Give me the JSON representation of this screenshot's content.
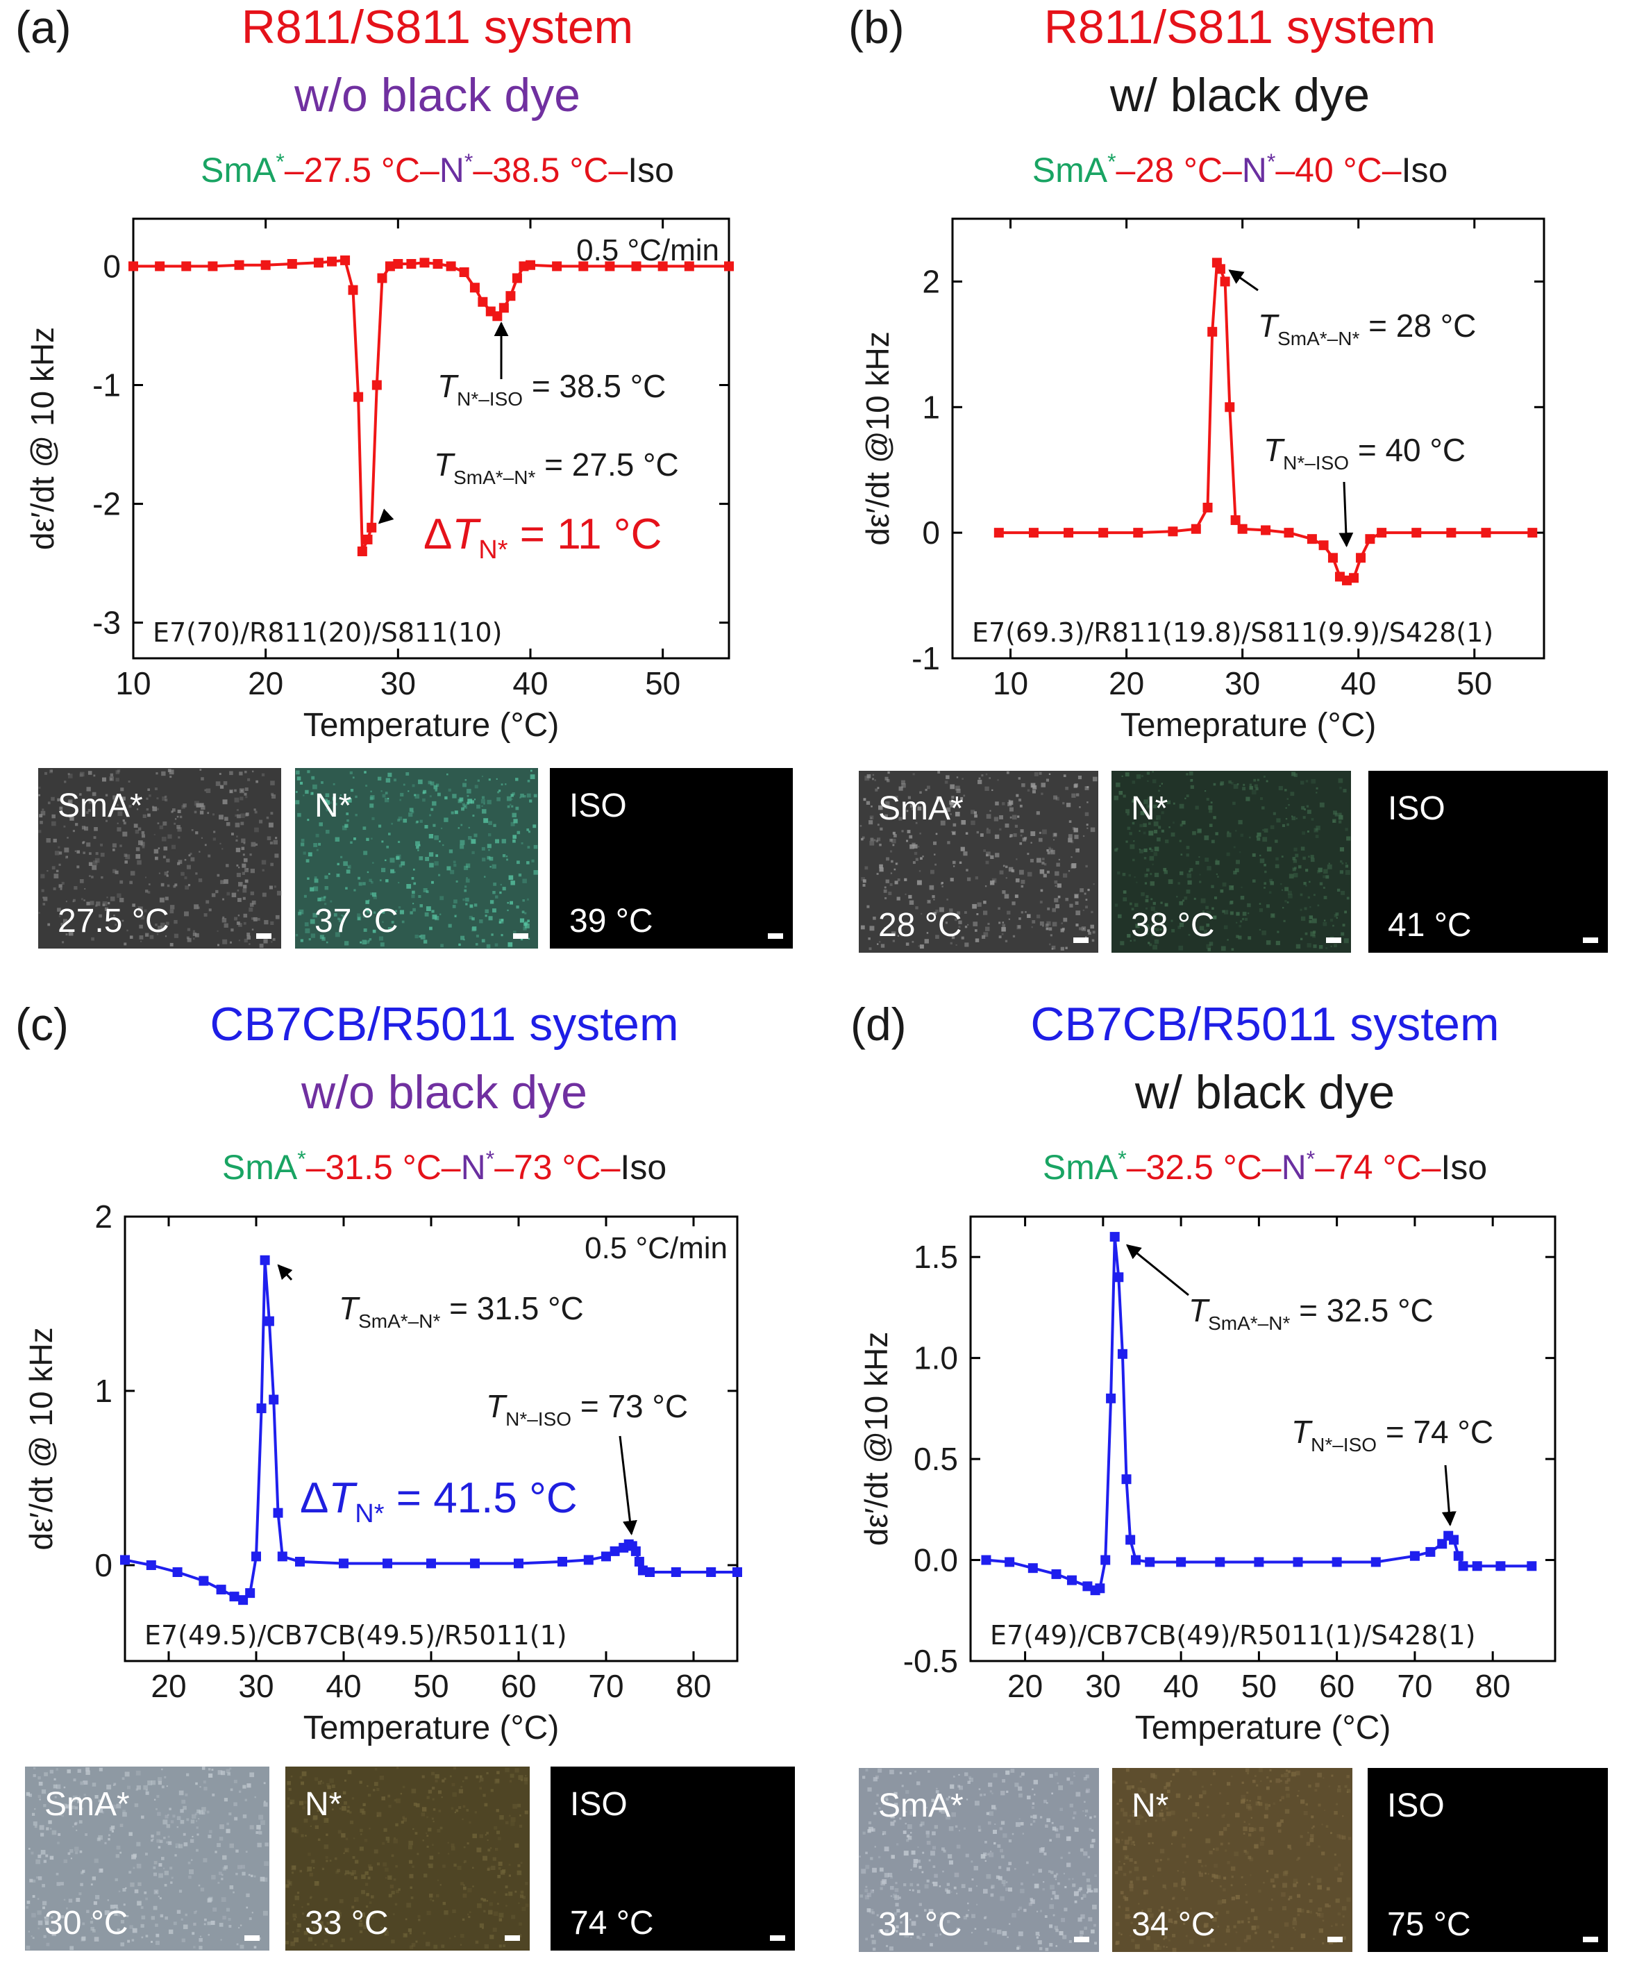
{
  "chart_data": [
    {
      "type": "line",
      "panel_label": "(a)",
      "title": "R811/S811 system",
      "subtitle": "w/o black dye",
      "phase_sequence": [
        {
          "text": "SmA",
          "color": "#19a463",
          "sup": "*"
        },
        {
          "text": "–27.5 °C–",
          "color": "#e5121a"
        },
        {
          "text": "N",
          "color": "#6a2fa0",
          "sup": "*"
        },
        {
          "text": "–38.5 °C–",
          "color": "#e5121a"
        },
        {
          "text": "Iso",
          "color": "#1a1a1a"
        }
      ],
      "xlabel": "Temperature (°C)",
      "ylabel": "dε′/dt @ 10 kHz",
      "xlim": [
        10,
        55
      ],
      "ylim": [
        -3.3,
        0.4
      ],
      "xticks": [
        10,
        20,
        30,
        40,
        50
      ],
      "yticks": [
        0,
        -1,
        -2,
        -3
      ],
      "rate": "0.5 °C/min",
      "composition": "E7(70)/R811(20)/S811(10)",
      "series": [
        {
          "name": "R811/S811 w/o dye",
          "x": [
            10,
            12,
            14,
            16,
            18,
            20,
            22,
            24,
            25,
            26,
            26.6,
            27.0,
            27.3,
            27.7,
            28.0,
            28.4,
            28.8,
            29.4,
            30,
            31,
            32,
            33,
            34,
            35,
            35.8,
            36.4,
            37.0,
            37.5,
            38.0,
            38.5,
            39.0,
            39.5,
            40,
            42,
            44,
            46,
            48,
            50,
            52,
            55
          ],
          "y": [
            0,
            0,
            0,
            0,
            0.01,
            0.01,
            0.02,
            0.03,
            0.04,
            0.05,
            -0.2,
            -1.1,
            -2.4,
            -2.3,
            -2.2,
            -1.0,
            -0.1,
            0.0,
            0.02,
            0.02,
            0.03,
            0.02,
            0.0,
            -0.05,
            -0.18,
            -0.3,
            -0.38,
            -0.42,
            -0.35,
            -0.25,
            -0.1,
            0.0,
            0.01,
            0,
            0,
            0,
            0,
            0,
            0,
            0
          ]
        }
      ],
      "annotations": [
        {
          "sym": "T",
          "sub": "N*–ISO",
          "value": " = 38.5 °C",
          "target": [
            37.8,
            -0.42
          ]
        },
        {
          "sym": "T",
          "sub": "SmA*–N*",
          "value": " = 27.5 °C",
          "target": [
            28.2,
            -2.2
          ]
        }
      ],
      "delta": {
        "prefix": "Δ",
        "sym": "T",
        "sub": "N*",
        "value": " = 11 °C",
        "color": "#e5121a"
      },
      "line_color": "#f01616",
      "images": [
        {
          "phase": "SmA*",
          "temp": "27.5 °C",
          "bg": "#3a3a3a",
          "tint": "#8a8a8a"
        },
        {
          "phase": "N*",
          "temp": "37 °C",
          "bg": "#2f5a4e",
          "tint": "#56c2a0"
        },
        {
          "phase": "ISO",
          "temp": "39 °C",
          "bg": "#000000",
          "tint": "#000000"
        }
      ]
    },
    {
      "type": "line",
      "panel_label": "(b)",
      "title": "R811/S811 system",
      "subtitle": "w/ black dye",
      "phase_sequence": [
        {
          "text": "SmA",
          "color": "#19a463",
          "sup": "*"
        },
        {
          "text": "–28 °C–",
          "color": "#e5121a"
        },
        {
          "text": "N",
          "color": "#6a2fa0",
          "sup": "*"
        },
        {
          "text": "–40 °C–",
          "color": "#e5121a"
        },
        {
          "text": "Iso",
          "color": "#1a1a1a"
        }
      ],
      "xlabel": "Temeprature (°C)",
      "ylabel": "dε′/dt @10 kHz",
      "xlim": [
        5,
        56
      ],
      "ylim": [
        -1,
        2.5
      ],
      "xticks": [
        10,
        20,
        30,
        40,
        50
      ],
      "yticks": [
        2,
        1,
        0,
        -1
      ],
      "rate": "",
      "composition": "E7(69.3)/R811(19.8)/S811(9.9)/S428(1)",
      "series": [
        {
          "name": "R811/S811 w/ dye",
          "x": [
            9,
            12,
            15,
            18,
            21,
            24,
            26,
            27.0,
            27.4,
            27.8,
            28.1,
            28.5,
            28.9,
            29.4,
            30,
            32,
            34,
            36,
            37,
            37.8,
            38.4,
            39.0,
            39.6,
            40.2,
            41,
            42,
            45,
            48,
            51,
            55
          ],
          "y": [
            0,
            0,
            0,
            0,
            0,
            0.01,
            0.03,
            0.2,
            1.6,
            2.15,
            2.1,
            2.0,
            1.0,
            0.1,
            0.03,
            0.02,
            0,
            -0.05,
            -0.1,
            -0.2,
            -0.35,
            -0.38,
            -0.36,
            -0.2,
            -0.05,
            0,
            0,
            0,
            0,
            0
          ]
        }
      ],
      "annotations": [
        {
          "sym": "T",
          "sub": "SmA*–N*",
          "value": " = 28 °C",
          "target": [
            28.4,
            2.12
          ]
        },
        {
          "sym": "T",
          "sub": "N*–ISO",
          "value": " = 40 °C",
          "target": [
            39.0,
            -0.16
          ]
        }
      ],
      "delta": null,
      "line_color": "#f01616",
      "images": [
        {
          "phase": "SmA*",
          "temp": "28 °C",
          "bg": "#3c3c3c",
          "tint": "#9a9a9a"
        },
        {
          "phase": "N*",
          "temp": "38 °C",
          "bg": "#213328",
          "tint": "#3f6a4c"
        },
        {
          "phase": "ISO",
          "temp": "41 °C",
          "bg": "#000000",
          "tint": "#000000"
        }
      ]
    },
    {
      "type": "line",
      "panel_label": "(c)",
      "title": "CB7CB/R5011 system",
      "subtitle": "w/o black dye",
      "phase_sequence": [
        {
          "text": "SmA",
          "color": "#19a463",
          "sup": "*"
        },
        {
          "text": "–31.5 °C–",
          "color": "#e5121a"
        },
        {
          "text": "N",
          "color": "#6a2fa0",
          "sup": "*"
        },
        {
          "text": "–73 °C–",
          "color": "#e5121a"
        },
        {
          "text": "Iso",
          "color": "#1a1a1a"
        }
      ],
      "xlabel": "Temperature (°C)",
      "ylabel": "dε′/dt @ 10 kHz",
      "xlim": [
        15,
        85
      ],
      "ylim": [
        -0.55,
        2.0
      ],
      "xticks": [
        20,
        30,
        40,
        50,
        60,
        70,
        80
      ],
      "yticks": [
        0,
        1,
        2
      ],
      "rate": "0.5 °C/min",
      "composition": "E7(49.5)/CB7CB(49.5)/R5011(1)",
      "series": [
        {
          "name": "CB7CB/R5011 w/o dye",
          "x": [
            15,
            18,
            21,
            24,
            26,
            27.5,
            28.5,
            29.3,
            30.0,
            30.6,
            31.0,
            31.5,
            32.0,
            32.5,
            33.0,
            35,
            40,
            45,
            50,
            55,
            60,
            65,
            68,
            70,
            71,
            72,
            72.6,
            73.0,
            73.4,
            73.8,
            74.2,
            75,
            78,
            82,
            85
          ],
          "y": [
            0.03,
            0.0,
            -0.04,
            -0.09,
            -0.14,
            -0.18,
            -0.2,
            -0.16,
            0.05,
            0.9,
            1.75,
            1.4,
            0.95,
            0.3,
            0.05,
            0.02,
            0.01,
            0.01,
            0.01,
            0.01,
            0.01,
            0.02,
            0.03,
            0.05,
            0.08,
            0.1,
            0.12,
            0.11,
            0.08,
            0.02,
            -0.03,
            -0.04,
            -0.04,
            -0.04,
            -0.04
          ]
        }
      ],
      "annotations": [
        {
          "sym": "T",
          "sub": "SmA*–N*",
          "value": " = 31.5 °C",
          "target": [
            32.0,
            1.75
          ]
        },
        {
          "sym": "T",
          "sub": "N*–ISO",
          "value": " = 73 °C",
          "target": [
            73.0,
            0.14
          ]
        }
      ],
      "delta": {
        "prefix": "Δ",
        "sym": "T",
        "sub": "N*",
        "value": " = 41.5 °C",
        "color": "#1f1fdf"
      },
      "line_color": "#1f1fee",
      "images": [
        {
          "phase": "SmA*",
          "temp": "30 °C",
          "bg": "#8e99a3",
          "tint": "#c0c8cf"
        },
        {
          "phase": "N*",
          "temp": "33 °C",
          "bg": "#4f4525",
          "tint": "#6e6238"
        },
        {
          "phase": "ISO",
          "temp": "74 °C",
          "bg": "#000000",
          "tint": "#000000"
        }
      ]
    },
    {
      "type": "line",
      "panel_label": "(d)",
      "title": "CB7CB/R5011 system",
      "subtitle": "w/ black dye",
      "phase_sequence": [
        {
          "text": "SmA",
          "color": "#19a463",
          "sup": "*"
        },
        {
          "text": "–32.5 °C–",
          "color": "#e5121a"
        },
        {
          "text": "N",
          "color": "#6a2fa0",
          "sup": "*"
        },
        {
          "text": "–74 °C–",
          "color": "#e5121a"
        },
        {
          "text": "Iso",
          "color": "#1a1a1a"
        }
      ],
      "xlabel": "Temperature (°C)",
      "ylabel": "dε′/dt @10 kHz",
      "xlim": [
        13,
        88
      ],
      "ylim": [
        -0.5,
        1.7
      ],
      "xticks": [
        20,
        30,
        40,
        50,
        60,
        70,
        80
      ],
      "yticks": [
        1.5,
        1.0,
        0.5,
        0.0,
        -0.5
      ],
      "rate": "",
      "composition": "E7(49)/CB7CB(49)/R5011(1)/S428(1)",
      "series": [
        {
          "name": "CB7CB/R5011 w/ dye",
          "x": [
            15,
            18,
            21,
            24,
            26,
            28,
            29.0,
            29.6,
            30.3,
            31.0,
            31.5,
            32.0,
            32.5,
            33.0,
            33.5,
            34.2,
            36,
            40,
            45,
            50,
            55,
            60,
            65,
            70,
            72,
            73.5,
            74.3,
            75.0,
            75.6,
            76.2,
            78,
            81,
            85
          ],
          "y": [
            0.0,
            -0.01,
            -0.04,
            -0.07,
            -0.1,
            -0.13,
            -0.15,
            -0.14,
            0.0,
            0.8,
            1.6,
            1.4,
            1.02,
            0.4,
            0.1,
            0.0,
            -0.01,
            -0.01,
            -0.01,
            -0.01,
            -0.01,
            -0.01,
            -0.01,
            0.02,
            0.04,
            0.08,
            0.12,
            0.1,
            0.02,
            -0.03,
            -0.03,
            -0.03,
            -0.03
          ]
        }
      ],
      "annotations": [
        {
          "sym": "T",
          "sub": "SmA*–N*",
          "value": " = 32.5 °C",
          "target": [
            32.4,
            1.58
          ]
        },
        {
          "sym": "T",
          "sub": "N*–ISO",
          "value": " = 74 °C",
          "target": [
            74.6,
            0.14
          ]
        }
      ],
      "delta": null,
      "line_color": "#1f1fee",
      "images": [
        {
          "phase": "SmA*",
          "temp": "31 °C",
          "bg": "#8d96a2",
          "tint": "#c3cad2"
        },
        {
          "phase": "N*",
          "temp": "34 °C",
          "bg": "#5e4e2e",
          "tint": "#7d6a42"
        },
        {
          "phase": "ISO",
          "temp": "75 °C",
          "bg": "#000000",
          "tint": "#000000"
        }
      ]
    }
  ],
  "colors": {
    "title_red": "#e5121a",
    "title_blue": "#1e1ee6",
    "subtitle_purple": "#7030a0",
    "subtitle_black": "#1a1a1a"
  }
}
